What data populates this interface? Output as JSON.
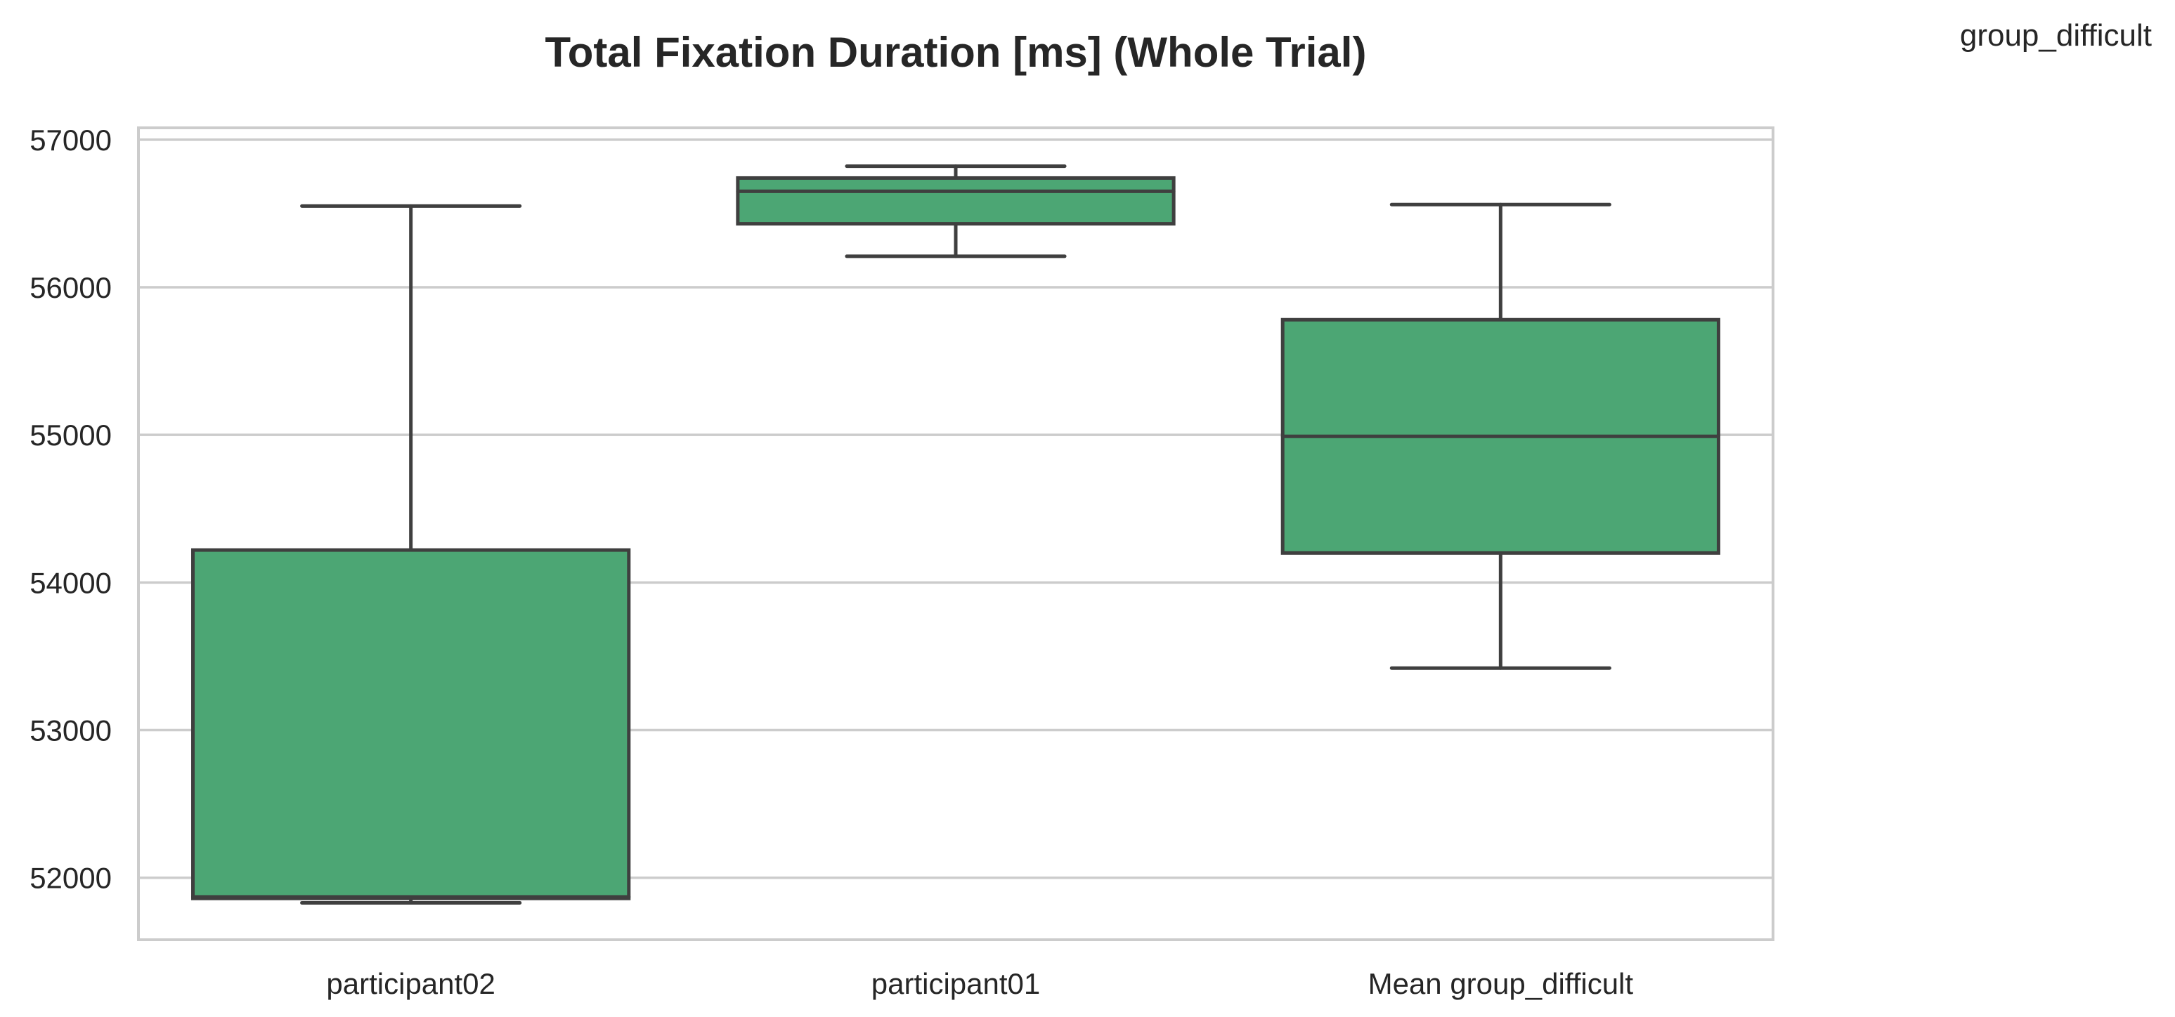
{
  "chart_data": {
    "type": "box",
    "title": "Total Fixation Duration [ms] (Whole Trial)",
    "legend_title": "group_difficult",
    "legend_placement": "top-right",
    "xlabel": "",
    "ylabel": "",
    "ylim": [
      51580,
      57080
    ],
    "yticks": [
      52000,
      53000,
      54000,
      55000,
      56000,
      57000
    ],
    "grid": "horizontal",
    "box_color": "#4ca674",
    "line_color": "#3f3f3f",
    "categories": [
      "participant02",
      "participant01",
      "Mean group_difficult"
    ],
    "boxes": [
      {
        "category": "participant02",
        "whislo": 51830,
        "q1": 51860,
        "med": 51870,
        "q3": 54220,
        "whishi": 56550
      },
      {
        "category": "participant01",
        "whislo": 56210,
        "q1": 56430,
        "med": 56650,
        "q3": 56740,
        "whishi": 56820
      },
      {
        "category": "Mean group_difficult",
        "whislo": 53420,
        "q1": 54200,
        "med": 54990,
        "q3": 55780,
        "whishi": 56560
      }
    ]
  }
}
